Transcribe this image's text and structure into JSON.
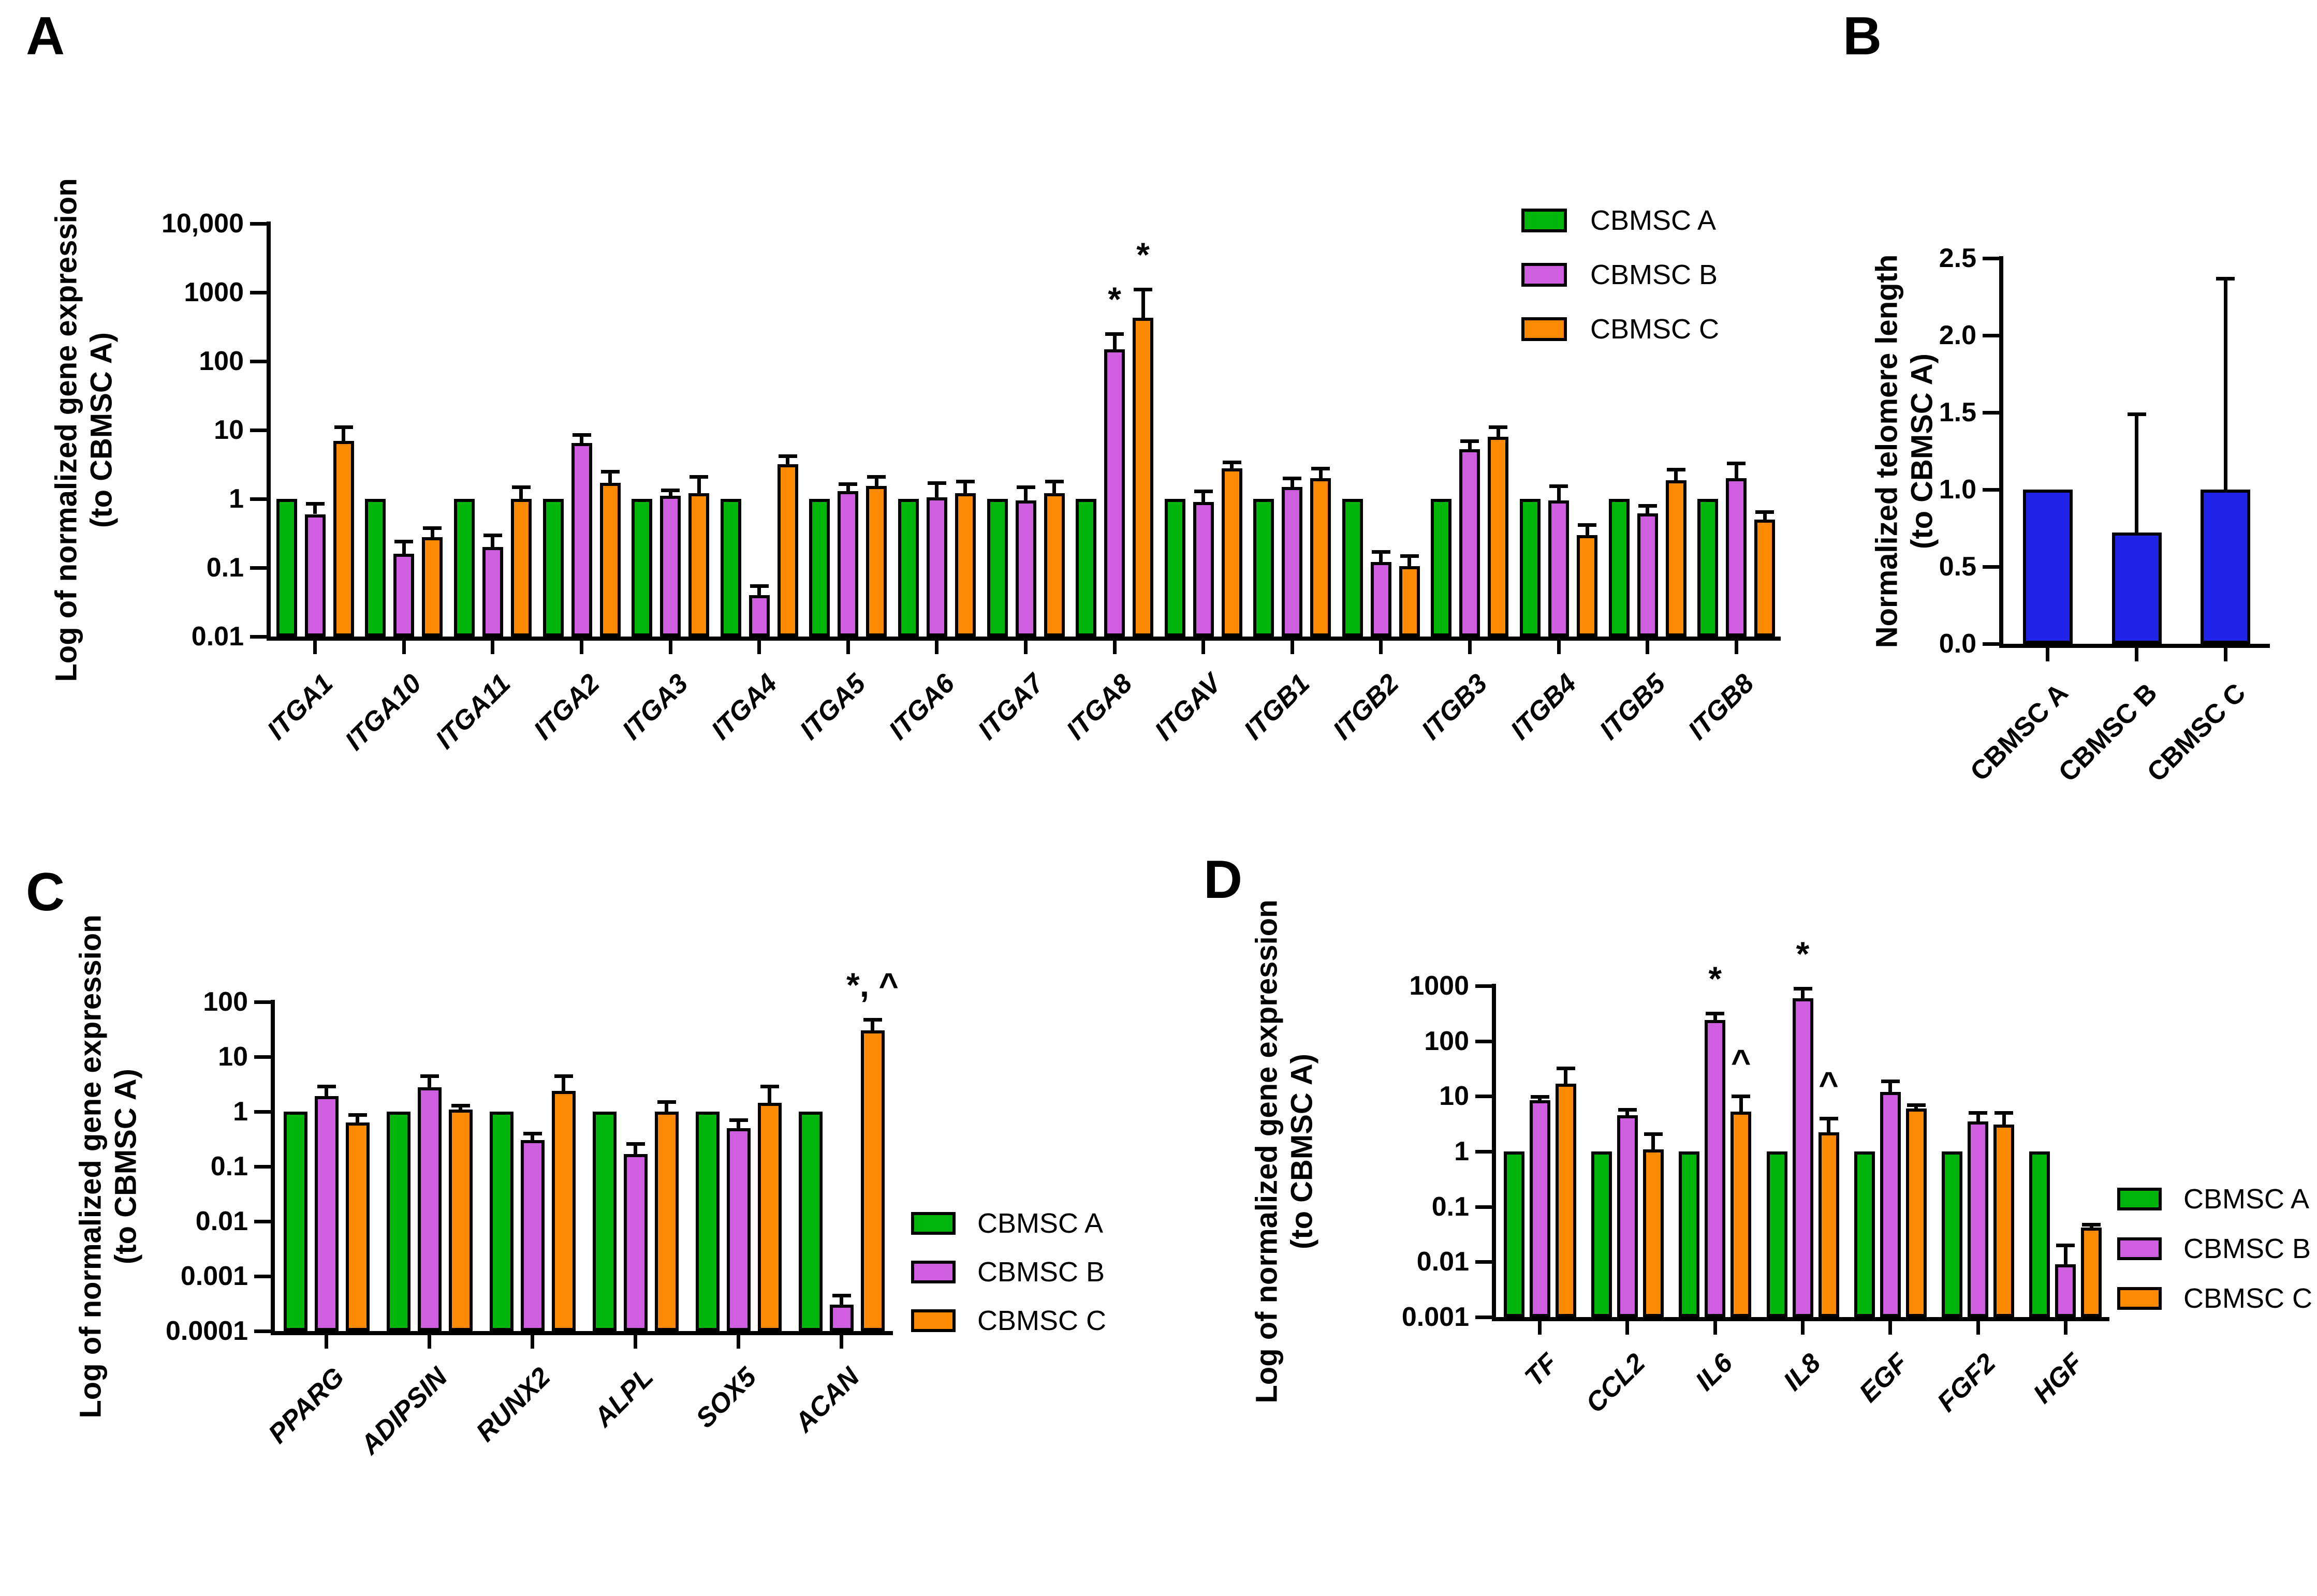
{
  "colors": {
    "cbmsc_a": "#00b509",
    "cbmsc_b": "#cf5ee0",
    "cbmsc_c": "#ff8b05",
    "telomere_blue": "#1f24e8",
    "axis": "#000000"
  },
  "chart_data": [
    {
      "panel": "A",
      "type": "bar",
      "scale": "log",
      "ylabel1": "Log of normalized gene expression",
      "ylabel2": "(to CBMSC A)",
      "ymin": 0.01,
      "ymax": 10000,
      "yticks": [
        {
          "v": 10000,
          "label": "10,000"
        },
        {
          "v": 1000,
          "label": "1000"
        },
        {
          "v": 100,
          "label": "100"
        },
        {
          "v": 10,
          "label": "10"
        },
        {
          "v": 1,
          "label": "1"
        },
        {
          "v": 0.1,
          "label": "0.1"
        },
        {
          "v": 0.01,
          "label": "0.01"
        }
      ],
      "categories": [
        "ITGA1",
        "ITGA10",
        "ITGA11",
        "ITGA2",
        "ITGA3",
        "ITGA4",
        "ITGA5",
        "ITGA6",
        "ITGA7",
        "ITGA8",
        "ITGAV",
        "ITGB1",
        "ITGB2",
        "ITGB3",
        "ITGB4",
        "ITGB5",
        "ITGB8"
      ],
      "series": [
        {
          "name": "CBMSC A",
          "color": "#00b509",
          "values": [
            1,
            1,
            1,
            1,
            1,
            1,
            1,
            1,
            1,
            1,
            1,
            1,
            1,
            1,
            1,
            1,
            1
          ]
        },
        {
          "name": "CBMSC B",
          "color": "#cf5ee0",
          "values": [
            0.6,
            0.16,
            0.2,
            6.5,
            1.1,
            0.04,
            1.3,
            1.05,
            0.95,
            150,
            0.9,
            1.5,
            0.12,
            5.3,
            0.95,
            0.62,
            2.0
          ],
          "err_top": [
            0.85,
            0.24,
            0.3,
            8.5,
            1.35,
            0.055,
            1.65,
            1.7,
            1.5,
            250,
            1.3,
            2.0,
            0.17,
            6.9,
            1.55,
            0.8,
            3.3
          ],
          "sig": {
            "ITGA8": "*"
          }
        },
        {
          "name": "CBMSC C",
          "color": "#ff8b05",
          "values": [
            7,
            0.28,
            1.0,
            1.7,
            1.2,
            3.2,
            1.55,
            1.2,
            1.2,
            430,
            2.8,
            2.0,
            0.105,
            8.0,
            0.3,
            1.85,
            0.5
          ],
          "err_top": [
            11,
            0.38,
            1.5,
            2.5,
            2.1,
            4.2,
            2.1,
            1.8,
            1.8,
            1100,
            3.4,
            2.8,
            0.15,
            11,
            0.42,
            2.7,
            0.65
          ],
          "sig": {
            "ITGA8": "*"
          }
        }
      ],
      "legend": true
    },
    {
      "panel": "B",
      "type": "bar",
      "scale": "linear",
      "ylabel1": "Normalized telomere length",
      "ylabel2": "(to CBMSC A)",
      "ymin": 0,
      "ymax": 2.5,
      "yticks": [
        {
          "v": 2.5,
          "label": "2.5"
        },
        {
          "v": 2.0,
          "label": "2.0"
        },
        {
          "v": 1.5,
          "label": "1.5"
        },
        {
          "v": 1.0,
          "label": "1.0"
        },
        {
          "v": 0.5,
          "label": "0.5"
        },
        {
          "v": 0.0,
          "label": "0.0"
        }
      ],
      "categories": [
        "CBMSC A",
        "CBMSC B",
        "CBMSC C"
      ],
      "italic_cats": false,
      "series": [
        {
          "name": "Telomere length",
          "color": "#1f24e8",
          "values": [
            1.0,
            0.72,
            1.0
          ],
          "err_top": [
            null,
            1.49,
            2.37
          ]
        }
      ],
      "legend": false
    },
    {
      "panel": "C",
      "type": "bar",
      "scale": "log",
      "ylabel1": "Log of normalized gene expression",
      "ylabel2": "(to CBMSC A)",
      "ymin": 0.0001,
      "ymax": 100,
      "yticks": [
        {
          "v": 100,
          "label": "100"
        },
        {
          "v": 10,
          "label": "10"
        },
        {
          "v": 1,
          "label": "1"
        },
        {
          "v": 0.1,
          "label": "0.1"
        },
        {
          "v": 0.01,
          "label": "0.01"
        },
        {
          "v": 0.001,
          "label": "0.001"
        },
        {
          "v": 0.0001,
          "label": "0.0001"
        }
      ],
      "categories": [
        "PPARG",
        "ADIPSIN",
        "RUNX2",
        "ALPL",
        "SOX5",
        "ACAN"
      ],
      "series": [
        {
          "name": "CBMSC A",
          "color": "#00b509",
          "values": [
            1,
            1,
            1,
            1,
            1,
            1
          ]
        },
        {
          "name": "CBMSC B",
          "color": "#cf5ee0",
          "values": [
            1.9,
            2.8,
            0.3,
            0.17,
            0.5,
            0.0003
          ],
          "err_top": [
            2.9,
            4.5,
            0.4,
            0.26,
            0.7,
            0.00045
          ]
        },
        {
          "name": "CBMSC C",
          "color": "#ff8b05",
          "values": [
            0.63,
            1.1,
            2.4,
            1.0,
            1.45,
            30
          ],
          "err_top": [
            0.87,
            1.3,
            4.5,
            1.5,
            2.9,
            48
          ],
          "sig": {
            "ACAN": "*, ^"
          }
        }
      ],
      "legend": true
    },
    {
      "panel": "D",
      "type": "bar",
      "scale": "log",
      "ylabel1": "Log of normalized gene expression",
      "ylabel2": "(to CBMSC A)",
      "ymin": 0.001,
      "ymax": 1000,
      "yticks": [
        {
          "v": 1000,
          "label": "1000"
        },
        {
          "v": 100,
          "label": "100"
        },
        {
          "v": 10,
          "label": "10"
        },
        {
          "v": 1,
          "label": "1"
        },
        {
          "v": 0.1,
          "label": "0.1"
        },
        {
          "v": 0.01,
          "label": "0.01"
        },
        {
          "v": 0.001,
          "label": "0.001"
        }
      ],
      "categories": [
        "TF",
        "CCL2",
        "IL6",
        "IL8",
        "EGF",
        "FGF2",
        "HGF"
      ],
      "series": [
        {
          "name": "CBMSC A",
          "color": "#00b509",
          "values": [
            1,
            1,
            1,
            1,
            1,
            1,
            1
          ]
        },
        {
          "name": "CBMSC B",
          "color": "#cf5ee0",
          "values": [
            8.5,
            4.5,
            240,
            600,
            12,
            3.5,
            0.009
          ],
          "err_top": [
            9.8,
            5.8,
            320,
            900,
            19,
            5.0,
            0.02
          ],
          "sig": {
            "IL6": "*",
            "IL8": "*"
          }
        },
        {
          "name": "CBMSC C",
          "color": "#ff8b05",
          "values": [
            17,
            1.1,
            5.3,
            2.2,
            6.0,
            3.1,
            0.042
          ],
          "err_top": [
            32,
            2.1,
            10,
            4.0,
            7.0,
            5.0,
            0.048
          ],
          "sig": {
            "IL6": "^",
            "IL8": "^"
          }
        }
      ],
      "legend": true
    }
  ]
}
